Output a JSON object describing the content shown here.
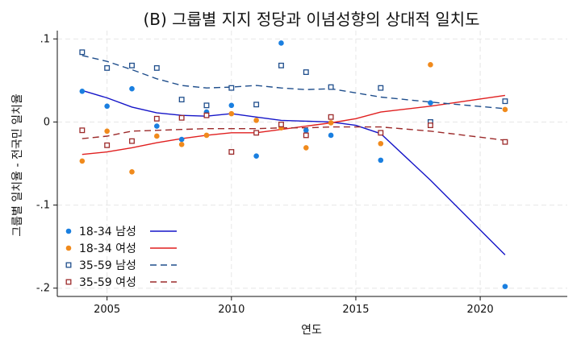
{
  "chart_data": {
    "type": "scatter",
    "title": "(B) 그룹별 지지 정당과 이념성향의 상대적 일치도",
    "xlabel": "연도",
    "ylabel": "그룹별 일치율 - 전국민 일치율",
    "xlim": [
      2003,
      2023.5
    ],
    "ylim": [
      -0.21,
      0.11
    ],
    "xticks": [
      2005,
      2010,
      2015,
      2020
    ],
    "yticks": [
      {
        "value": 0.1,
        "label": ".1"
      },
      {
        "value": 0,
        "label": "0"
      },
      {
        "value": -0.1,
        "label": "-.1"
      },
      {
        "value": -0.2,
        "label": "-.2"
      }
    ],
    "grid": true,
    "legend_position": "bottom-left",
    "series": [
      {
        "name": "18-34 남성",
        "color": "#1a7fe0",
        "marker": "filled-circle",
        "points": [
          [
            2004,
            0.037
          ],
          [
            2005,
            0.019
          ],
          [
            2006,
            0.04
          ],
          [
            2007,
            -0.005
          ],
          [
            2008,
            -0.021
          ],
          [
            2009,
            0.012
          ],
          [
            2010,
            0.02
          ],
          [
            2011,
            -0.041
          ],
          [
            2012,
            0.095
          ],
          [
            2013,
            -0.01
          ],
          [
            2014,
            -0.016
          ],
          [
            2016,
            -0.046
          ],
          [
            2018,
            0.023
          ],
          [
            2021,
            -0.198
          ]
        ],
        "fit_color": "#1515c8",
        "fit_dash": "solid",
        "fit": [
          [
            2004,
            0.038
          ],
          [
            2005,
            0.029
          ],
          [
            2006,
            0.018
          ],
          [
            2007,
            0.011
          ],
          [
            2008,
            0.008
          ],
          [
            2009,
            0.007
          ],
          [
            2010,
            0.01
          ],
          [
            2011,
            0.006
          ],
          [
            2012,
            0.002
          ],
          [
            2013,
            0.001
          ],
          [
            2014,
            0.0
          ],
          [
            2015,
            -0.004
          ],
          [
            2016,
            -0.014
          ],
          [
            2018,
            -0.07
          ],
          [
            2021,
            -0.16
          ]
        ]
      },
      {
        "name": "18-34 여성",
        "color": "#f08a1c",
        "marker": "filled-circle",
        "points": [
          [
            2004,
            -0.047
          ],
          [
            2005,
            -0.011
          ],
          [
            2006,
            -0.06
          ],
          [
            2007,
            -0.017
          ],
          [
            2008,
            -0.027
          ],
          [
            2009,
            -0.016
          ],
          [
            2010,
            0.01
          ],
          [
            2011,
            0.002
          ],
          [
            2012,
            -0.007
          ],
          [
            2013,
            -0.031
          ],
          [
            2014,
            -0.001
          ],
          [
            2016,
            -0.026
          ],
          [
            2018,
            0.069
          ],
          [
            2021,
            0.015
          ]
        ],
        "fit_color": "#e01f1f",
        "fit_dash": "solid",
        "fit": [
          [
            2004,
            -0.039
          ],
          [
            2005,
            -0.036
          ],
          [
            2006,
            -0.031
          ],
          [
            2007,
            -0.025
          ],
          [
            2008,
            -0.02
          ],
          [
            2009,
            -0.016
          ],
          [
            2010,
            -0.013
          ],
          [
            2011,
            -0.013
          ],
          [
            2012,
            -0.009
          ],
          [
            2013,
            -0.005
          ],
          [
            2014,
            -0.001
          ],
          [
            2015,
            0.004
          ],
          [
            2016,
            0.012
          ],
          [
            2018,
            0.019
          ],
          [
            2021,
            0.032
          ]
        ]
      },
      {
        "name": "35-59 남성",
        "color": "#1f4e8c",
        "marker": "hollow-square",
        "points": [
          [
            2004,
            0.084
          ],
          [
            2005,
            0.065
          ],
          [
            2006,
            0.068
          ],
          [
            2007,
            0.065
          ],
          [
            2008,
            0.027
          ],
          [
            2009,
            0.02
          ],
          [
            2010,
            0.041
          ],
          [
            2011,
            0.021
          ],
          [
            2012,
            0.068
          ],
          [
            2013,
            0.06
          ],
          [
            2014,
            0.042
          ],
          [
            2016,
            0.041
          ],
          [
            2018,
            0.0
          ],
          [
            2021,
            0.025
          ]
        ],
        "fit_color": "#1f4e8c",
        "fit_dash": "dashed",
        "fit": [
          [
            2004,
            0.08
          ],
          [
            2005,
            0.073
          ],
          [
            2006,
            0.063
          ],
          [
            2007,
            0.052
          ],
          [
            2008,
            0.044
          ],
          [
            2009,
            0.041
          ],
          [
            2010,
            0.042
          ],
          [
            2011,
            0.044
          ],
          [
            2012,
            0.041
          ],
          [
            2013,
            0.039
          ],
          [
            2014,
            0.04
          ],
          [
            2015,
            0.035
          ],
          [
            2016,
            0.03
          ],
          [
            2018,
            0.024
          ],
          [
            2021,
            0.016
          ]
        ]
      },
      {
        "name": "35-59 여성",
        "color": "#9c2a2a",
        "marker": "hollow-square",
        "points": [
          [
            2004,
            -0.01
          ],
          [
            2005,
            -0.028
          ],
          [
            2006,
            -0.023
          ],
          [
            2007,
            0.004
          ],
          [
            2008,
            0.005
          ],
          [
            2009,
            0.008
          ],
          [
            2010,
            -0.036
          ],
          [
            2011,
            -0.013
          ],
          [
            2012,
            -0.003
          ],
          [
            2013,
            -0.016
          ],
          [
            2014,
            0.006
          ],
          [
            2016,
            -0.013
          ],
          [
            2018,
            -0.004
          ],
          [
            2021,
            -0.024
          ]
        ],
        "fit_color": "#9c2a2a",
        "fit_dash": "dashed",
        "fit": [
          [
            2004,
            -0.02
          ],
          [
            2005,
            -0.017
          ],
          [
            2006,
            -0.011
          ],
          [
            2007,
            -0.01
          ],
          [
            2008,
            -0.009
          ],
          [
            2009,
            -0.008
          ],
          [
            2010,
            -0.008
          ],
          [
            2011,
            -0.008
          ],
          [
            2012,
            -0.007
          ],
          [
            2013,
            -0.007
          ],
          [
            2014,
            -0.006
          ],
          [
            2015,
            -0.006
          ],
          [
            2016,
            -0.006
          ],
          [
            2018,
            -0.011
          ],
          [
            2021,
            -0.022
          ]
        ]
      }
    ]
  }
}
